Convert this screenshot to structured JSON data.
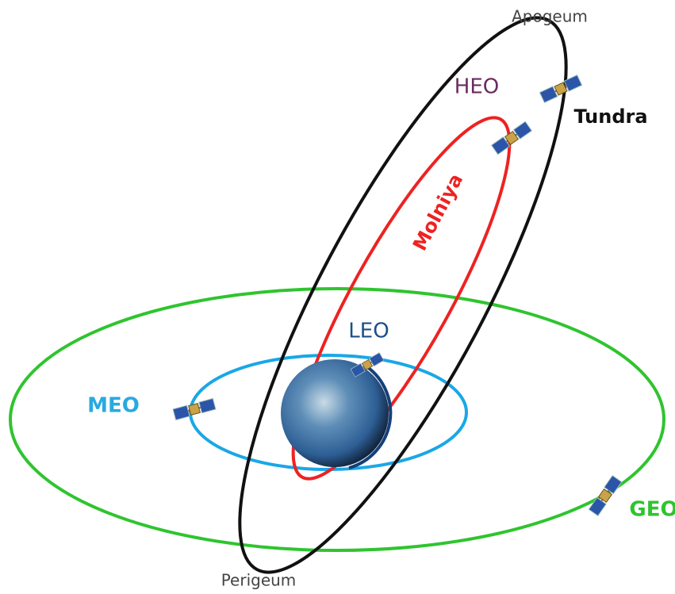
{
  "labels": {
    "apogee": "Apogeum",
    "heo": "HEO",
    "tundra": "Tundra",
    "molniya": "Molniya",
    "leo": "LEO",
    "meo": "MEO",
    "geo": "GEO",
    "perigee": "Perigeum"
  }
}
